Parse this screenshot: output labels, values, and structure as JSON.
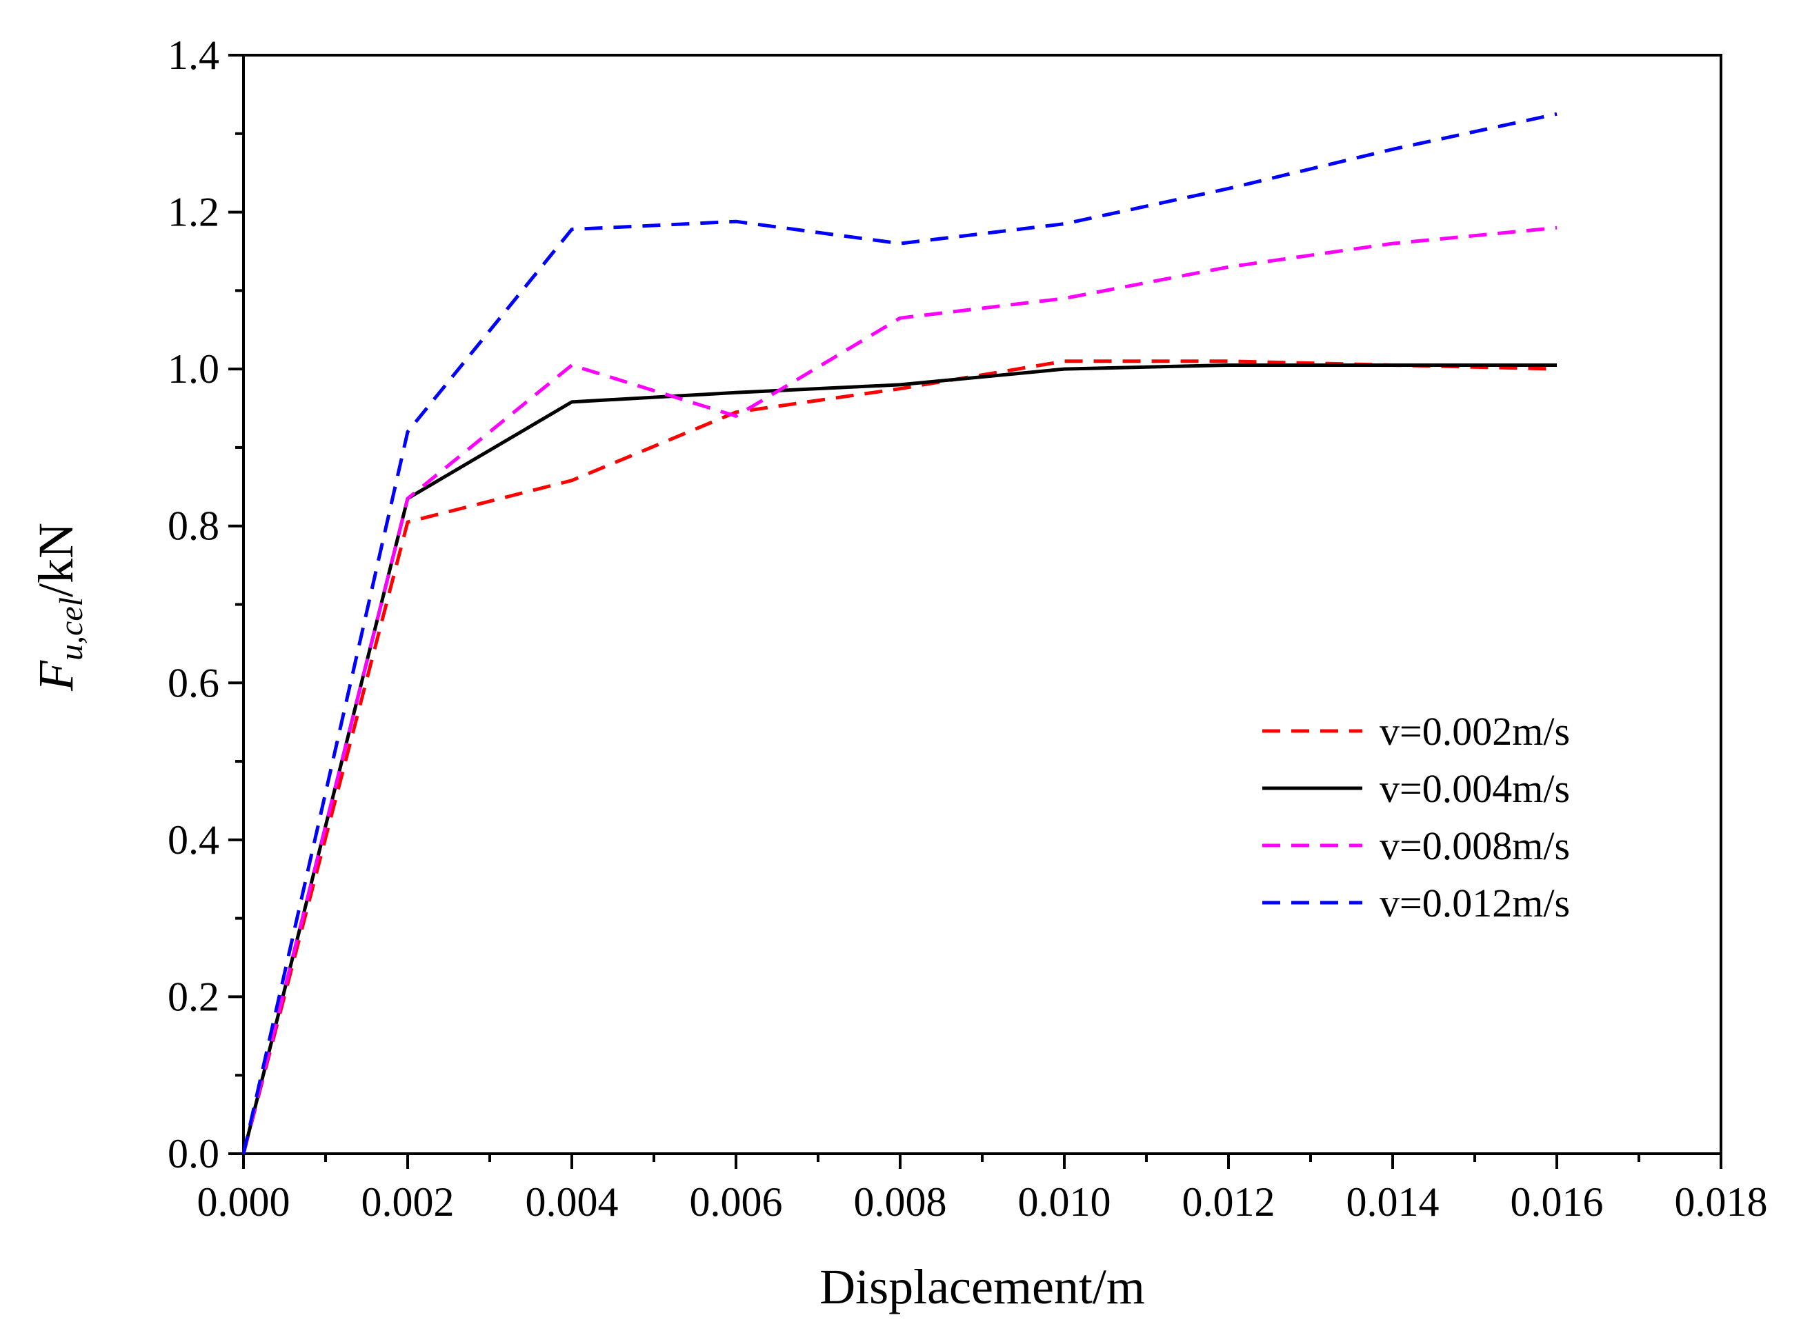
{
  "chart_data": {
    "type": "line",
    "title": "",
    "xlabel": "Displacement/m",
    "ylabel": {
      "main": "F",
      "subscript": "u,cel",
      "unit": "/kN"
    },
    "xlim": [
      0.0,
      0.018
    ],
    "ylim": [
      0.0,
      1.4
    ],
    "xticks": [
      "0.000",
      "0.002",
      "0.004",
      "0.006",
      "0.008",
      "0.010",
      "0.012",
      "0.014",
      "0.016",
      "0.018"
    ],
    "yticks": [
      "0.0",
      "0.2",
      "0.4",
      "0.6",
      "0.8",
      "1.0",
      "1.2",
      "1.4"
    ],
    "grid": false,
    "legend_position": "center-right",
    "series": [
      {
        "name": "v=0.002m/s",
        "color": "#ff0000",
        "style": "dashed",
        "x": [
          0.0,
          0.002,
          0.004,
          0.006,
          0.008,
          0.01,
          0.012,
          0.014,
          0.016
        ],
        "y": [
          0.0,
          0.805,
          0.858,
          0.945,
          0.975,
          1.01,
          1.01,
          1.005,
          1.0
        ]
      },
      {
        "name": "v=0.004m/s",
        "color": "#000000",
        "style": "solid",
        "x": [
          0.0,
          0.002,
          0.004,
          0.006,
          0.008,
          0.01,
          0.012,
          0.014,
          0.016
        ],
        "y": [
          0.0,
          0.835,
          0.958,
          0.97,
          0.98,
          1.0,
          1.005,
          1.005,
          1.005
        ]
      },
      {
        "name": "v=0.008m/s",
        "color": "#ff00ff",
        "style": "dashed",
        "x": [
          0.0,
          0.002,
          0.004,
          0.006,
          0.008,
          0.01,
          0.012,
          0.014,
          0.016
        ],
        "y": [
          0.0,
          0.835,
          1.005,
          0.94,
          1.065,
          1.09,
          1.13,
          1.16,
          1.18
        ]
      },
      {
        "name": "v=0.012m/s",
        "color": "#0000ff",
        "style": "dashed",
        "x": [
          0.0,
          0.002,
          0.004,
          0.006,
          0.008,
          0.01,
          0.012,
          0.014,
          0.016
        ],
        "y": [
          0.0,
          0.92,
          1.178,
          1.188,
          1.16,
          1.185,
          1.23,
          1.28,
          1.325
        ]
      }
    ]
  }
}
